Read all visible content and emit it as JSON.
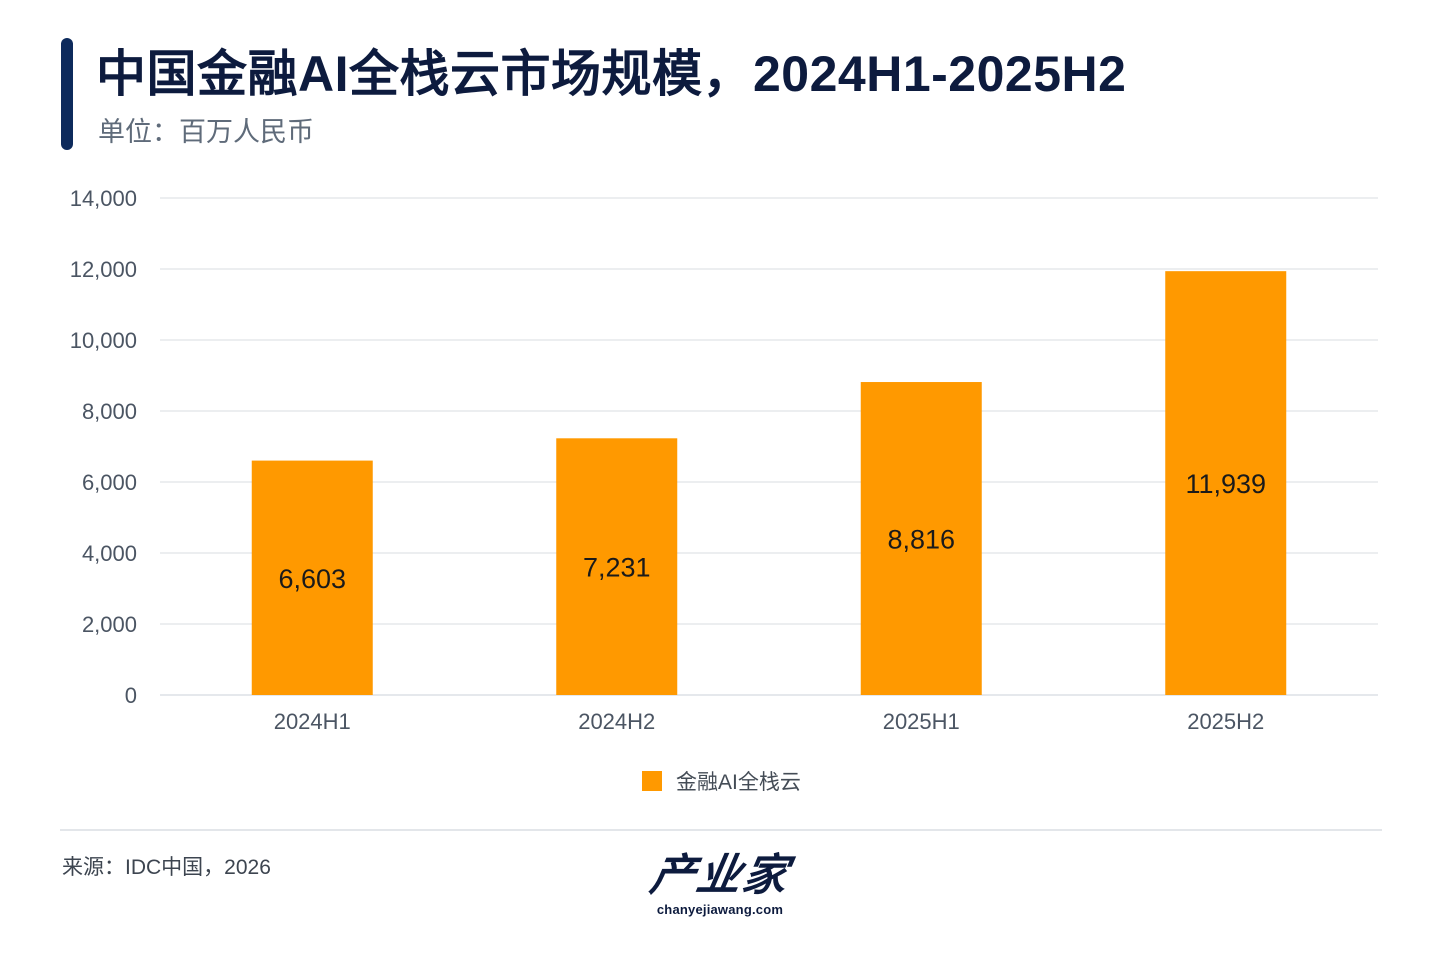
{
  "header": {
    "title": "中国金融AI全栈云市场规模，2024H1-2025H2",
    "subtitle": "单位：百万人民币"
  },
  "colors": {
    "accent": "#0d2a5c",
    "title_text": "#0d1b3e",
    "bar": "#ff9900",
    "gridline": "#e5e8ec",
    "tick_text": "#4b5563",
    "data_label": "#1a1a1a"
  },
  "chart_data": {
    "type": "bar",
    "title": "中国金融AI全栈云市场规模，2024H1-2025H2",
    "subtitle": "单位：百万人民币",
    "categories": [
      "2024H1",
      "2024H2",
      "2025H1",
      "2025H2"
    ],
    "series": [
      {
        "name": "金融AI全栈云",
        "values": [
          6603,
          7231,
          8816,
          11939
        ],
        "labels": [
          "6,603",
          "7,231",
          "8,816",
          "11,939"
        ]
      }
    ],
    "y_ticks": [
      "0",
      "2,000",
      "4,000",
      "6,000",
      "8,000",
      "10,000",
      "12,000",
      "14,000"
    ],
    "ylim": [
      0,
      14000
    ],
    "grid": true,
    "legend_position": "bottom-center"
  },
  "legend": {
    "label": "金融AI全栈云"
  },
  "footer": {
    "source": "来源：IDC中国，2026",
    "logo_main": "产业家",
    "logo_sub": "chanyejiawang.com"
  }
}
